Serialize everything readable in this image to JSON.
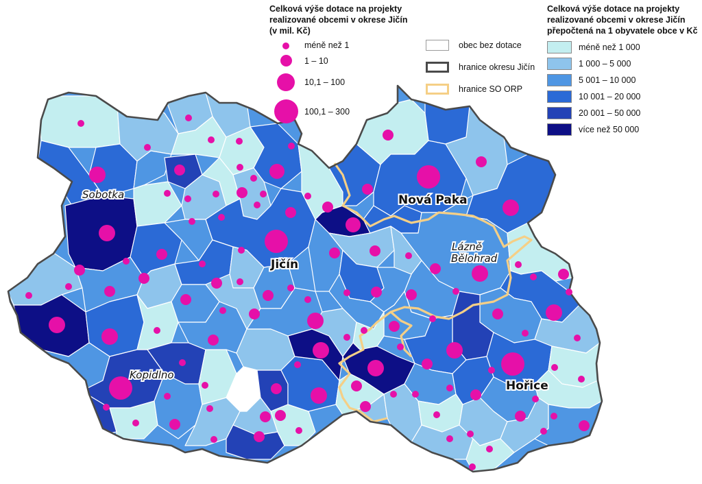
{
  "colors": {
    "class_0": "#c3eef0",
    "class_1": "#8ec4ec",
    "class_2": "#4f96e3",
    "class_3": "#2b6ad6",
    "class_4": "#2342b6",
    "class_5": "#0d0f86",
    "no_subsidy": "#ffffff",
    "symbol": "#e610a8",
    "district_border": "#4a4a4a",
    "orp_border": "#f5cf86"
  },
  "legend_size": {
    "title": "Celková výše dotace na projekty realizované obcemi v okrese Jičín (v mil. Kč)",
    "items": [
      {
        "label": "méně než 1"
      },
      {
        "label": "1 – 10"
      },
      {
        "label": "10,1 – 100"
      },
      {
        "label": "100,1 – 300"
      }
    ]
  },
  "legend_borders": {
    "items": [
      {
        "label": "obec bez dotace",
        "kind": "no_subsidy"
      },
      {
        "label": "hranice okresu Jičín",
        "kind": "district_border"
      },
      {
        "label": "hranice SO ORP",
        "kind": "orp_border"
      }
    ]
  },
  "legend_choropleth": {
    "title": "Celková výše dotace na projekty realizované obcemi v okrese Jičín přepočtená na 1 obyvatele obce v Kč",
    "classes": [
      {
        "label": "méně než 1 000",
        "color": "#c3eef0"
      },
      {
        "label": "1 000 – 5 000",
        "color": "#8ec4ec"
      },
      {
        "label": "5 001 – 10 000",
        "color": "#4f96e3"
      },
      {
        "label": "10 001 – 20 000",
        "color": "#2b6ad6"
      },
      {
        "label": "20 001 – 50 000",
        "color": "#2342b6"
      },
      {
        "label": "více než 50 000",
        "color": "#0d0f86"
      }
    ]
  },
  "towns": {
    "sobotka": "Sobotka",
    "nova_paka": "Nová Paka",
    "lazne_belohrad_1": "Lázně",
    "lazne_belohrad_2": "Bělohrad",
    "jicin": "Jičín",
    "kopidlno": "Kopidlno",
    "horice": "Hořice"
  }
}
